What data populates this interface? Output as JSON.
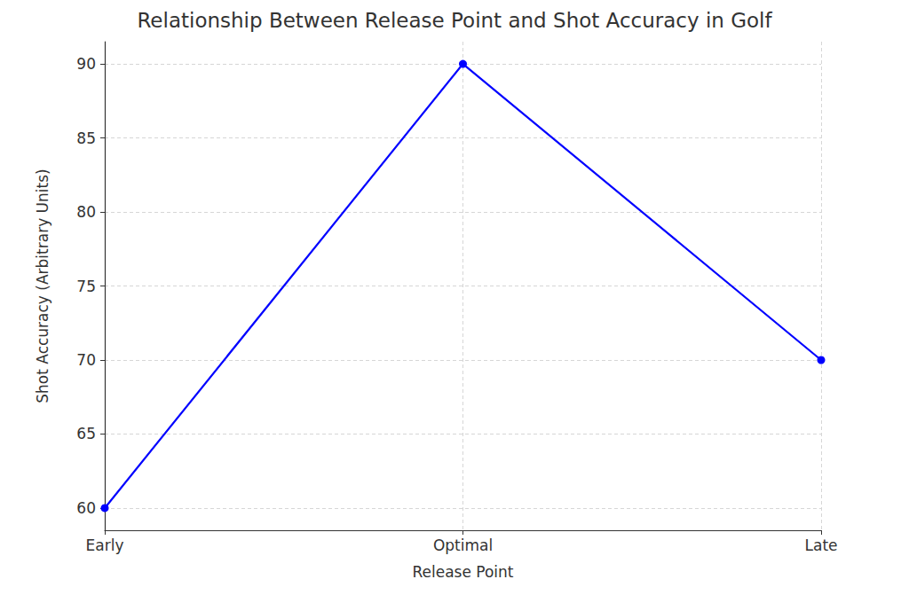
{
  "chart_data": {
    "type": "line",
    "title": "Relationship Between Release Point and Shot Accuracy in Golf",
    "xlabel": "Release Point",
    "ylabel": "Shot Accuracy (Arbitrary Units)",
    "categories": [
      "Early",
      "Optimal",
      "Late"
    ],
    "values": [
      60,
      90,
      70
    ],
    "color": "#0000ff",
    "marker": "o",
    "ylim": [
      58.5,
      91.5
    ],
    "yticks": [
      60,
      65,
      70,
      75,
      80,
      85,
      90
    ],
    "grid": true
  }
}
